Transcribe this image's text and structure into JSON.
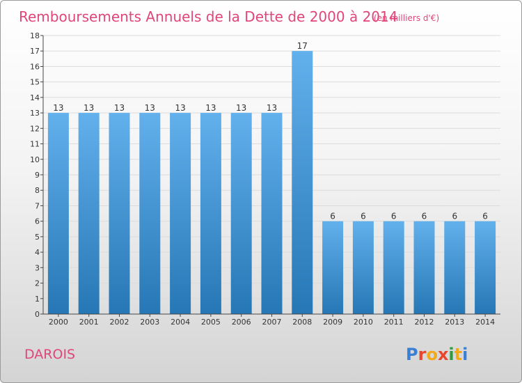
{
  "chart_data": {
    "type": "bar",
    "title": "Remboursements Annuels de la Dette de 2000 à 2014",
    "subtitle": "(en milliers d'€)",
    "categories": [
      "2000",
      "2001",
      "2002",
      "2003",
      "2004",
      "2005",
      "2006",
      "2007",
      "2008",
      "2009",
      "2010",
      "2011",
      "2012",
      "2013",
      "2014"
    ],
    "values": [
      13,
      13,
      13,
      13,
      13,
      13,
      13,
      13,
      17,
      6,
      6,
      6,
      6,
      6,
      6
    ],
    "yticks": [
      "0",
      "1",
      "2",
      "3",
      "4",
      "5",
      "6",
      "7",
      "8",
      "9",
      "10",
      "11",
      "12",
      "13",
      "14",
      "15",
      "16",
      "17",
      "18"
    ],
    "ylim": [
      0,
      18
    ],
    "xlabel": "",
    "ylabel": ""
  },
  "commune": "DAROIS",
  "logo": {
    "text": "Proxiti",
    "colors": [
      "#3a7fd6",
      "#e8452c",
      "#f2a91a",
      "#e8452c",
      "#2e9b3f",
      "#f2a91a",
      "#3a7fd6"
    ]
  },
  "colors": {
    "bar_top": "#62b0ec",
    "bar_bottom": "#2677b5",
    "accent": "#e0457b"
  }
}
